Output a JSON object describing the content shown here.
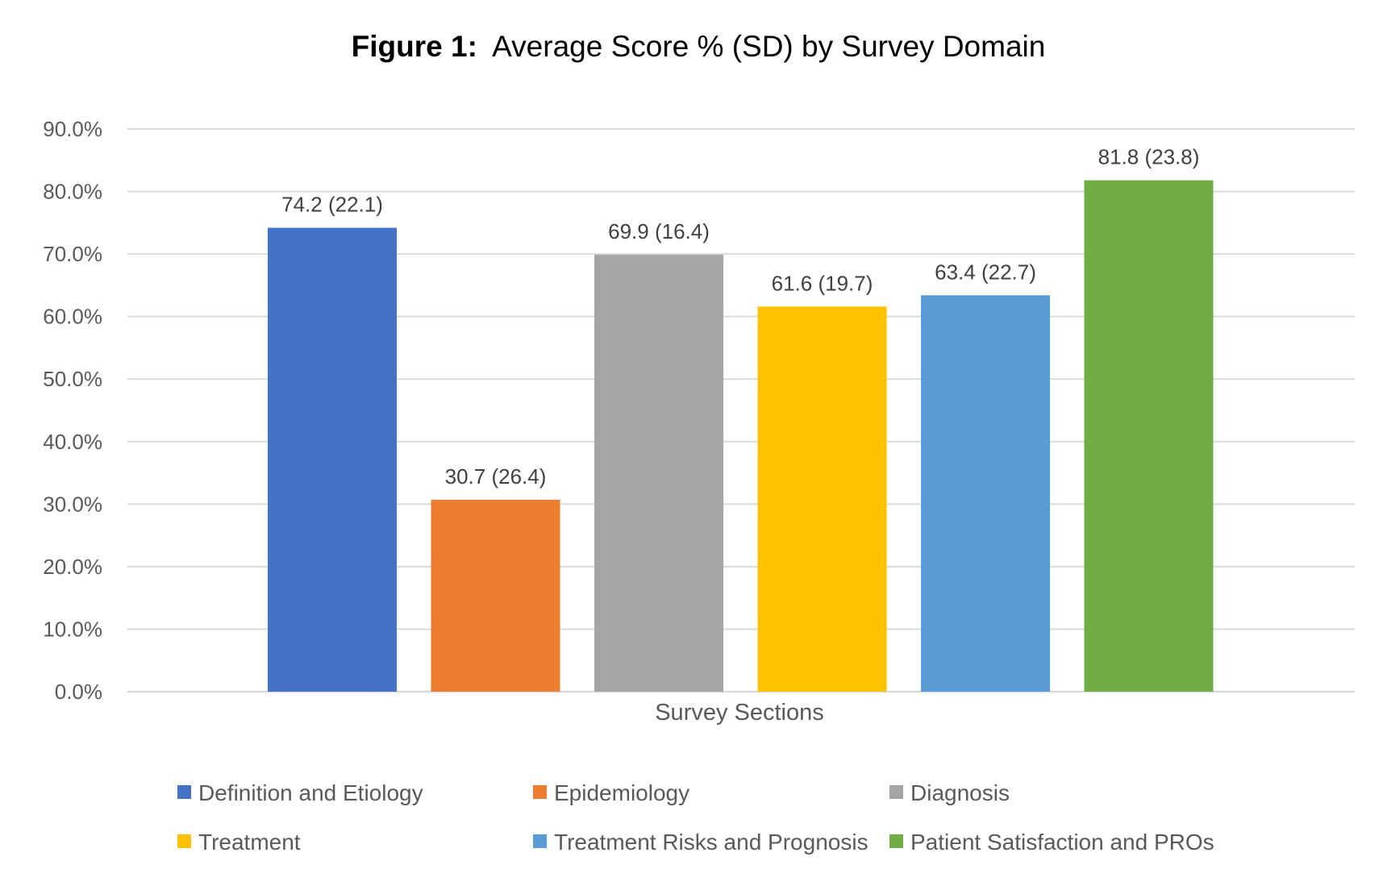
{
  "chart_data": {
    "type": "bar",
    "title_prefix": "Figure 1:",
    "title": "Average Score % (SD) by Survey Domain",
    "xlabel": "Survey Sections",
    "ylabel": "",
    "ylim": [
      0,
      90
    ],
    "yticks": [
      0,
      10,
      20,
      30,
      40,
      50,
      60,
      70,
      80,
      90
    ],
    "ytick_labels": [
      "0.0%",
      "10.0%",
      "20.0%",
      "30.0%",
      "40.0%",
      "50.0%",
      "60.0%",
      "70.0%",
      "80.0%",
      "90.0%"
    ],
    "grid": true,
    "legend_position": "bottom",
    "series": [
      {
        "name": "Definition and Etiology",
        "value": 74.2,
        "label": "74.2 (22.1)",
        "color": "#4472C4"
      },
      {
        "name": "Epidemiology",
        "value": 30.7,
        "label": "30.7 (26.4)",
        "color": "#ED7D31"
      },
      {
        "name": "Diagnosis",
        "value": 69.9,
        "label": "69.9 (16.4)",
        "color": "#A5A5A5"
      },
      {
        "name": "Treatment",
        "value": 61.6,
        "label": "61.6 (19.7)",
        "color": "#FFC000"
      },
      {
        "name": "Treatment Risks and Prognosis",
        "value": 63.4,
        "label": "63.4 (22.7)",
        "color": "#5B9BD5"
      },
      {
        "name": "Patient Satisfaction and PROs",
        "value": 81.8,
        "label": "81.8 (23.8)",
        "color": "#70AD47"
      }
    ]
  }
}
